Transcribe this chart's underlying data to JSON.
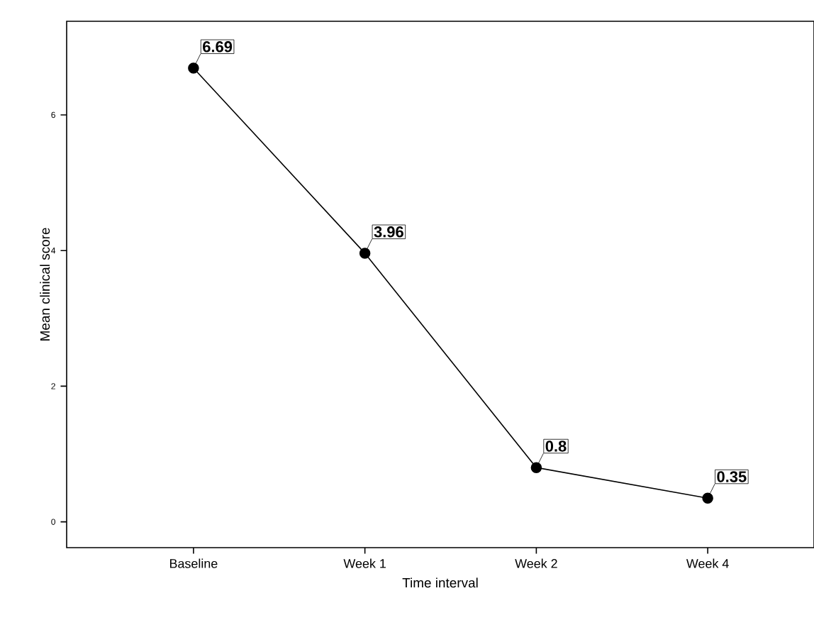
{
  "chart_data": {
    "type": "line",
    "xlabel": "Time interval",
    "ylabel": "Mean clinical score",
    "categories": [
      "Baseline",
      "Week 1",
      "Week 2",
      "Week 4"
    ],
    "values": [
      6.69,
      3.96,
      0.8,
      0.35
    ],
    "color": "#000000",
    "marker": "circle",
    "ylim": [
      -0.38,
      7.38
    ],
    "yticks": [
      0,
      2,
      4,
      6
    ],
    "data_labels": true
  }
}
